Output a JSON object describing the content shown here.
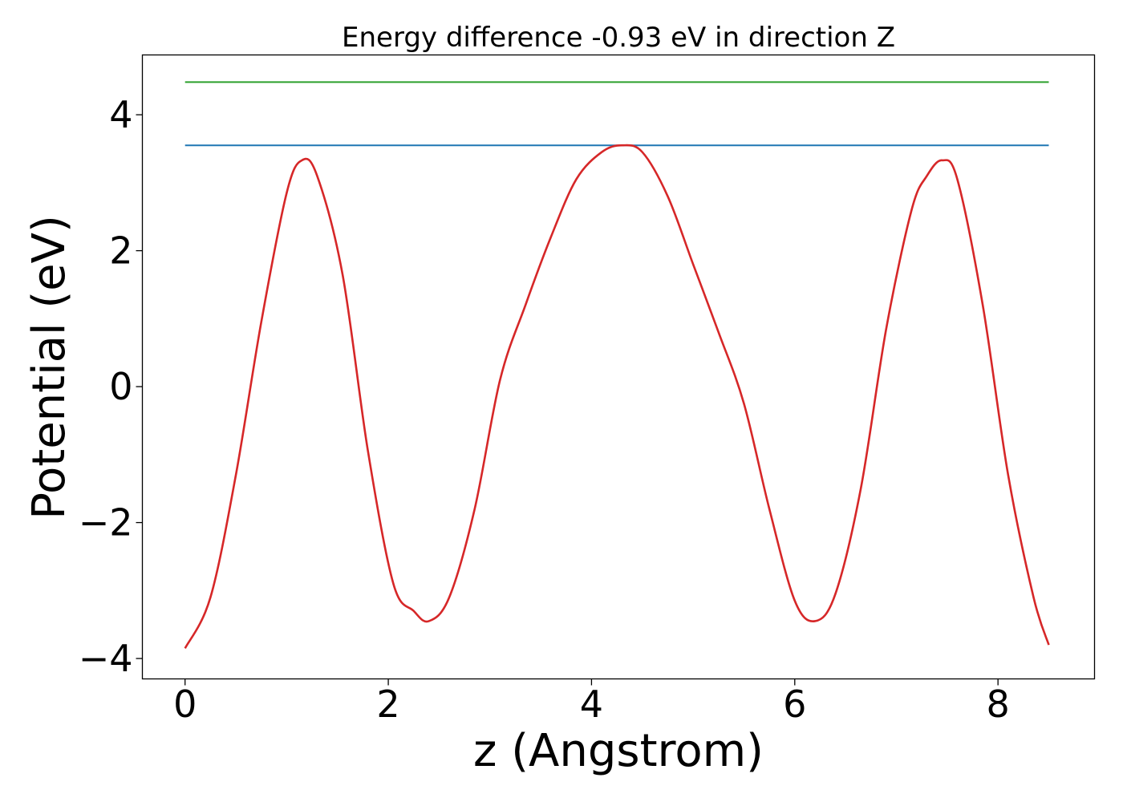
{
  "chart_data": {
    "type": "line",
    "title": "Energy difference -0.93 eV in direction Z",
    "xlabel": "z (Angstrom)",
    "ylabel": "Potential (eV)",
    "xlim": [
      -0.42,
      8.95
    ],
    "ylim": [
      -4.3,
      4.88
    ],
    "xticks": [
      0,
      2,
      4,
      6,
      8
    ],
    "xtick_labels": [
      "0",
      "2",
      "4",
      "6",
      "8"
    ],
    "yticks": [
      -4,
      -2,
      0,
      2,
      4
    ],
    "ytick_labels": [
      "−4",
      "−2",
      "0",
      "2",
      "4"
    ],
    "grid": false,
    "legend": "none",
    "series": [
      {
        "color": "#d62728",
        "x": [
          0,
          0.25,
          0.5,
          0.75,
          1.0,
          1.15,
          1.3,
          1.55,
          1.8,
          2.05,
          2.25,
          2.4,
          2.6,
          2.85,
          3.1,
          3.35,
          3.6,
          3.85,
          4.1,
          4.3,
          4.5,
          4.75,
          5.0,
          5.25,
          5.5,
          5.75,
          6.0,
          6.2,
          6.4,
          6.65,
          6.9,
          7.15,
          7.3,
          7.45,
          7.6,
          7.85,
          8.1,
          8.35,
          8.5
        ],
        "y": [
          -3.85,
          -3.1,
          -1.3,
          0.95,
          2.85,
          3.33,
          3.1,
          1.65,
          -0.95,
          -2.9,
          -3.3,
          -3.45,
          -3.1,
          -1.8,
          0.1,
          1.2,
          2.2,
          3.05,
          3.45,
          3.55,
          3.45,
          2.8,
          1.8,
          0.8,
          -0.25,
          -1.8,
          -3.15,
          -3.45,
          -3.05,
          -1.5,
          0.85,
          2.6,
          3.1,
          3.33,
          3.05,
          1.2,
          -1.3,
          -3.1,
          -3.8
        ]
      },
      {
        "color": "#1f77b4",
        "x": [
          0,
          8.5
        ],
        "y": [
          3.55,
          3.55
        ]
      },
      {
        "color": "#2ca02c",
        "x": [
          0,
          8.5
        ],
        "y": [
          4.48,
          4.48
        ]
      }
    ]
  }
}
